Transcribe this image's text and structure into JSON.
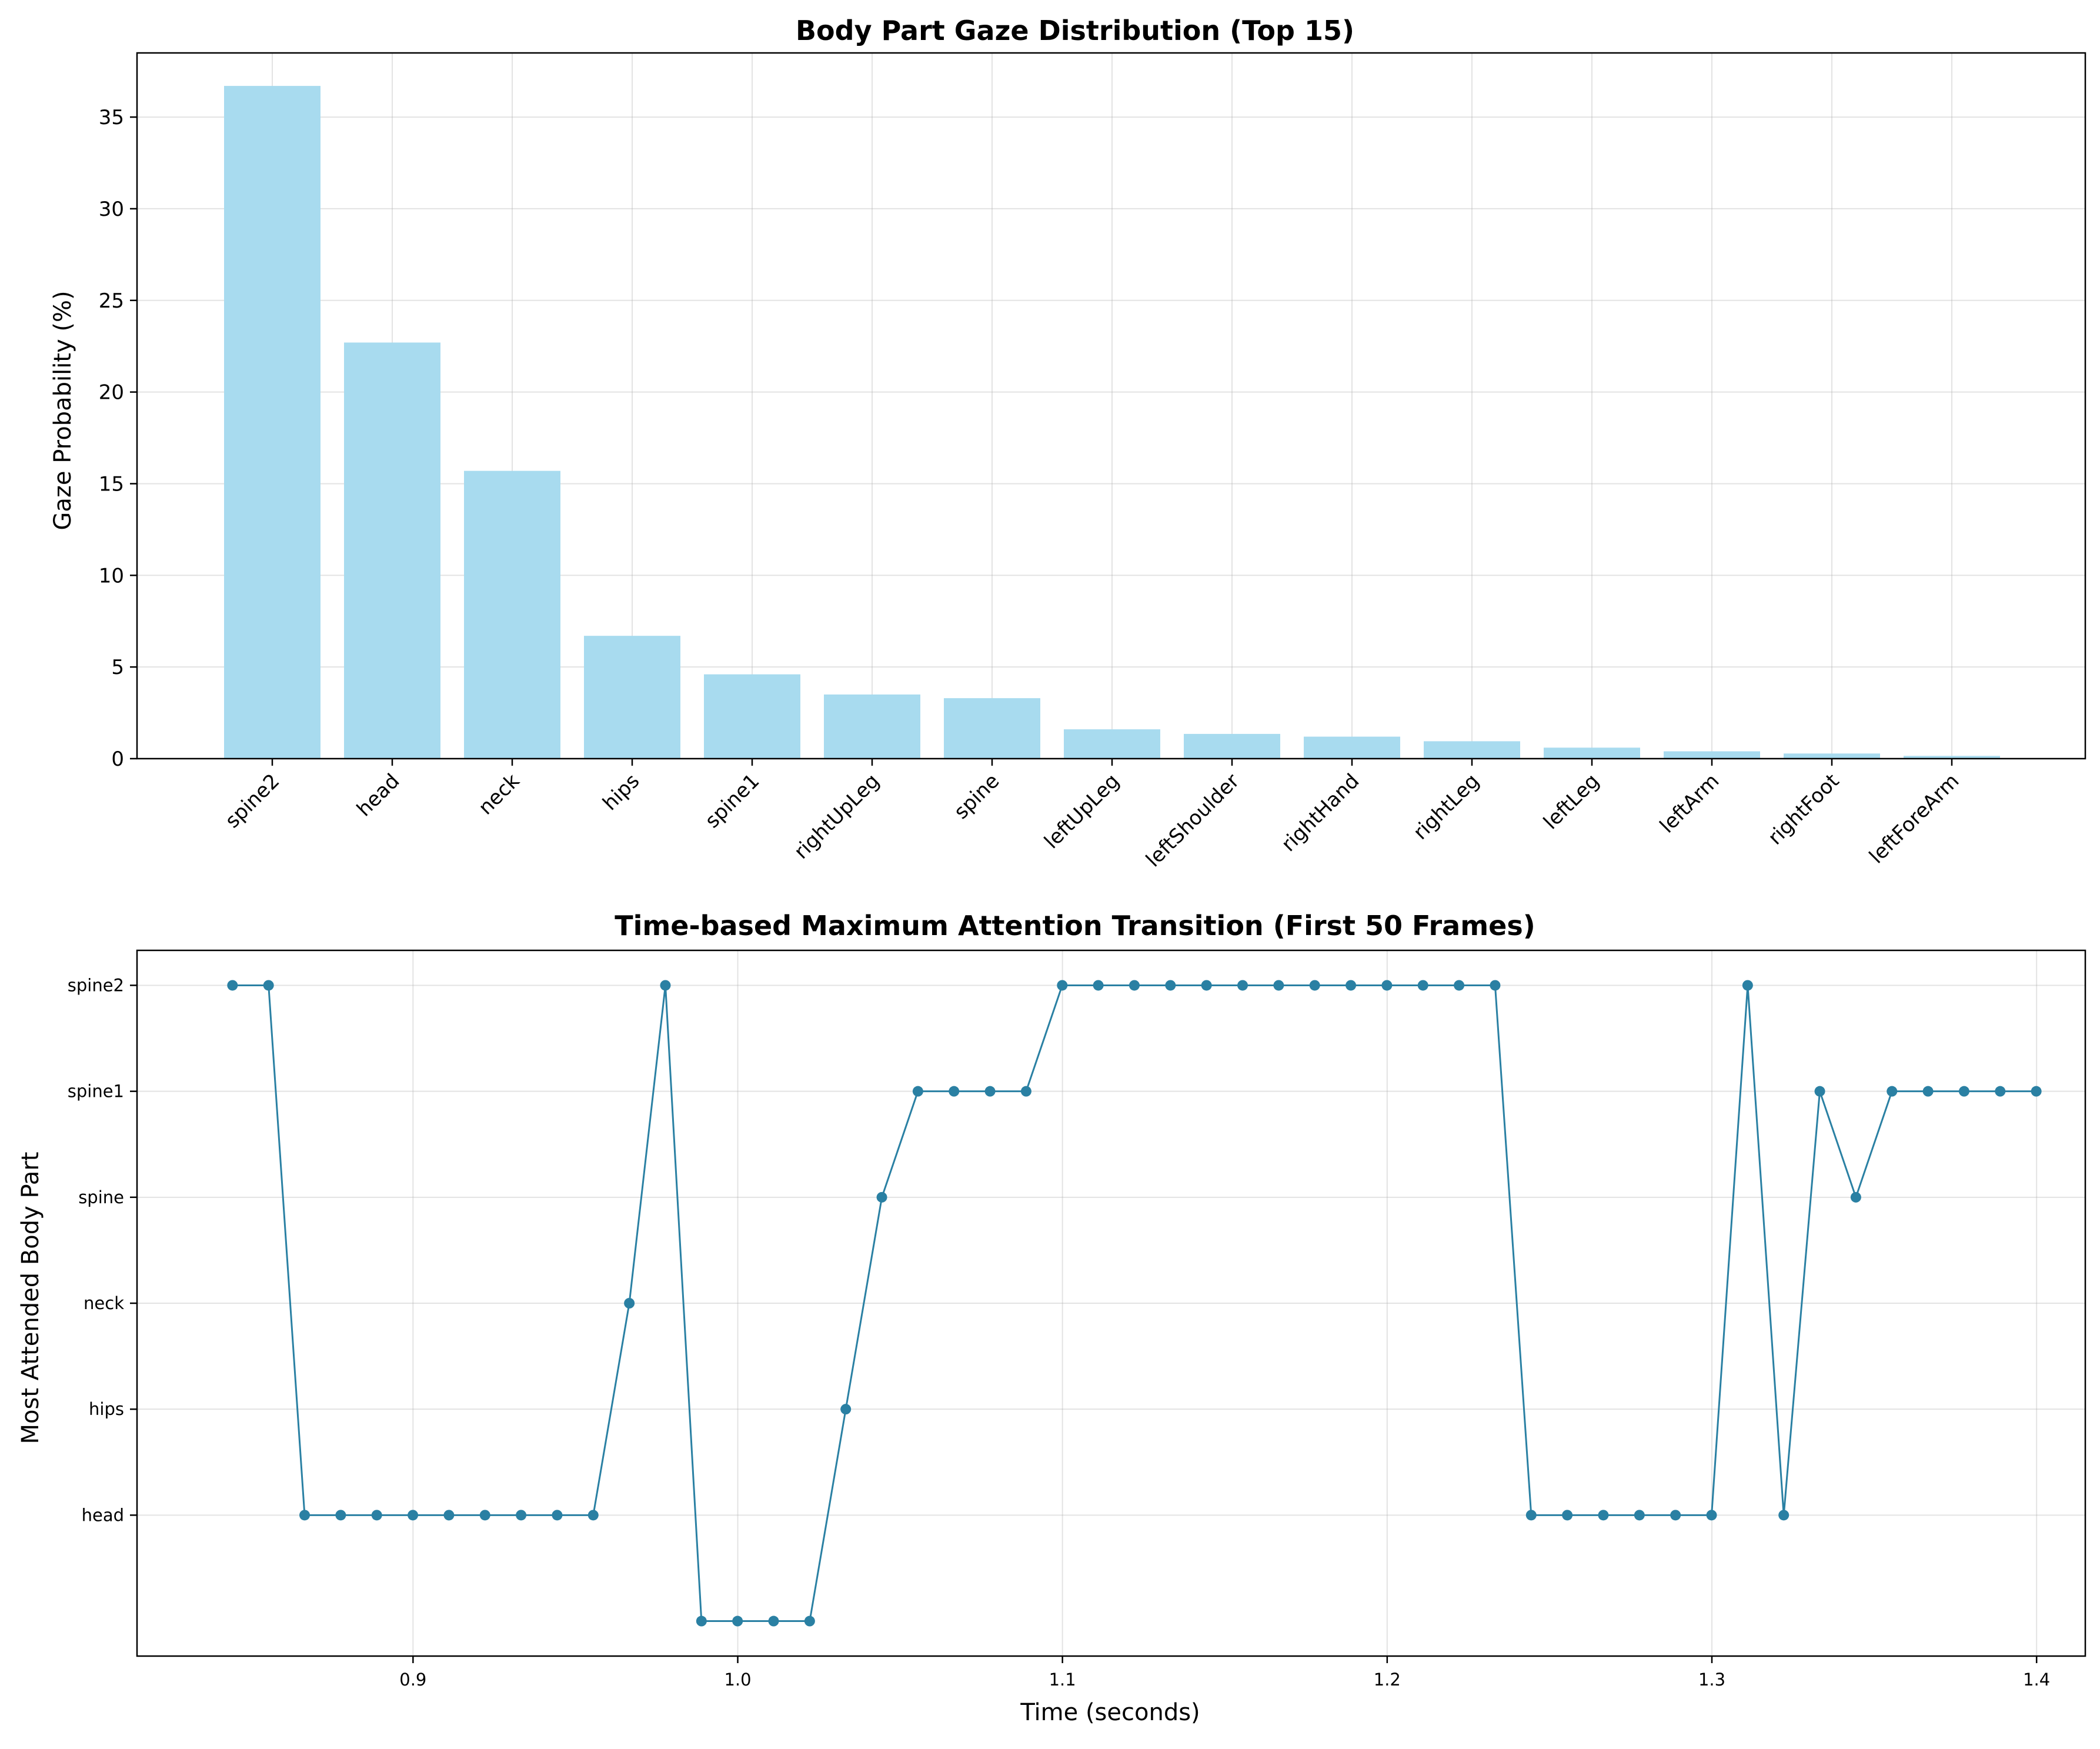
{
  "chart_data": [
    {
      "type": "bar",
      "title": "Body Part Gaze Distribution (Top 15)",
      "xlabel": "",
      "ylabel": "Gaze Probability (%)",
      "categories": [
        "spine2",
        "head",
        "neck",
        "hips",
        "spine1",
        "rightUpLeg",
        "spine",
        "leftUpLeg",
        "leftShoulder",
        "rightHand",
        "rightLeg",
        "leftLeg",
        "leftArm",
        "rightFoot",
        "leftForeArm"
      ],
      "values": [
        36.7,
        22.7,
        15.7,
        6.7,
        4.6,
        3.5,
        3.3,
        1.6,
        1.35,
        1.2,
        0.95,
        0.6,
        0.4,
        0.28,
        0.15
      ],
      "ylim": [
        0,
        38.5
      ],
      "yticks": [
        0,
        5,
        10,
        15,
        20,
        25,
        30,
        35
      ],
      "grid": true,
      "color": "#a8dbef"
    },
    {
      "type": "line",
      "title": "Time-based Maximum Attention Transition (First 50 Frames)",
      "xlabel": "Time (seconds)",
      "ylabel": "Most Attended Body Part",
      "xlim": [
        0.815,
        1.415
      ],
      "xticks": [
        0.9,
        1.0,
        1.1,
        1.2,
        1.3,
        1.4
      ],
      "xtick_labels": [
        "0.9",
        "1.0",
        "1.1",
        "1.2",
        "1.3",
        "1.4"
      ],
      "ylim": [
        -1.33,
        5.33
      ],
      "ytick_values": [
        0,
        1,
        2,
        3,
        4,
        5
      ],
      "ytick_labels": [
        "head",
        "hips",
        "neck",
        "spine",
        "spine1",
        "spine2"
      ],
      "x_start": 0.8444,
      "x_step": 0.01111,
      "y_levels": [
        5,
        5,
        0,
        0,
        0,
        0,
        0,
        0,
        0,
        0,
        0,
        2,
        5,
        -1,
        -1,
        -1,
        -1,
        1,
        3,
        4,
        4,
        4,
        4,
        5,
        5,
        5,
        5,
        5,
        5,
        5,
        5,
        5,
        5,
        5,
        5,
        5,
        0,
        0,
        0,
        0,
        0,
        0,
        5,
        0,
        4,
        3,
        4,
        4,
        4,
        4,
        4
      ],
      "grid": true,
      "color": "#2a80a3"
    }
  ]
}
